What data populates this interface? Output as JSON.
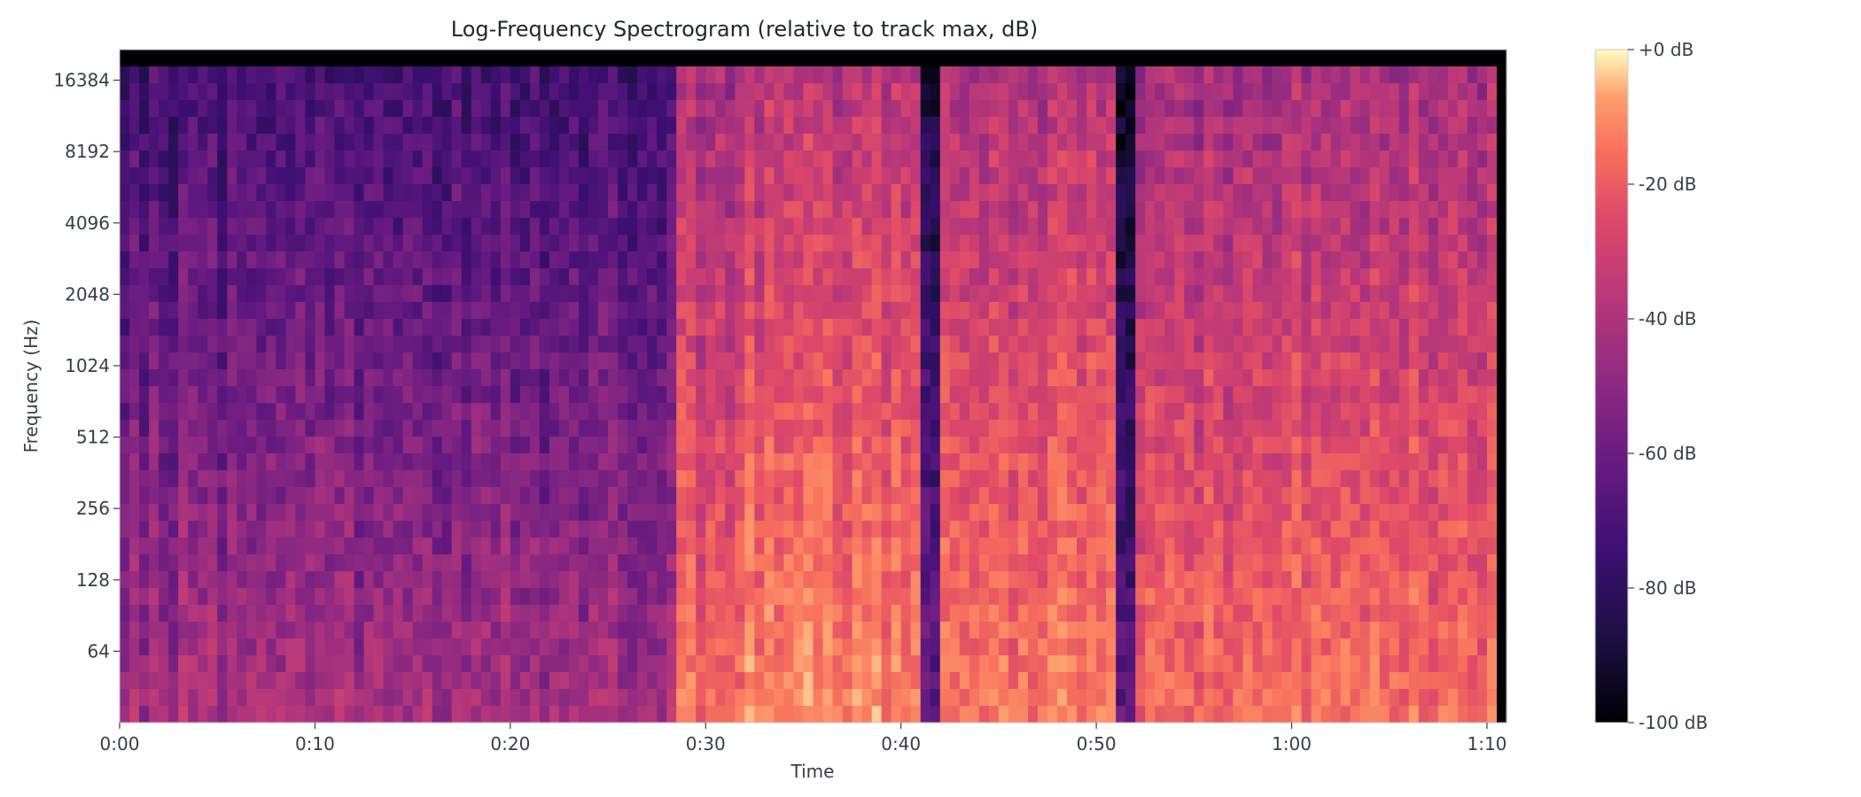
{
  "chart_data": {
    "type": "heatmap",
    "title": "Log-Frequency Spectrogram (relative to track max, dB)",
    "xlabel": "Time",
    "ylabel": "Frequency (Hz)",
    "x_unit": "seconds",
    "xlim": [
      0,
      71
    ],
    "ylim": [
      32,
      22050
    ],
    "y_scale": "log2",
    "x_ticks": [
      {
        "value": 0,
        "label": "0:00"
      },
      {
        "value": 10,
        "label": "0:10"
      },
      {
        "value": 20,
        "label": "0:20"
      },
      {
        "value": 30,
        "label": "0:30"
      },
      {
        "value": 40,
        "label": "0:40"
      },
      {
        "value": 50,
        "label": "0:50"
      },
      {
        "value": 60,
        "label": "1:00"
      },
      {
        "value": 70,
        "label": "1:10"
      }
    ],
    "y_ticks": [
      {
        "value": 64,
        "label": "64"
      },
      {
        "value": 128,
        "label": "128"
      },
      {
        "value": 256,
        "label": "256"
      },
      {
        "value": 512,
        "label": "512"
      },
      {
        "value": 1024,
        "label": "1024"
      },
      {
        "value": 2048,
        "label": "2048"
      },
      {
        "value": 4096,
        "label": "4096"
      },
      {
        "value": 8192,
        "label": "8192"
      },
      {
        "value": 16384,
        "label": "16384"
      }
    ],
    "colorbar": {
      "colormap": "magma",
      "range": [
        -100,
        0
      ],
      "ticks": [
        {
          "value": 0,
          "label": "+0 dB"
        },
        {
          "value": -20,
          "label": "-20 dB"
        },
        {
          "value": -40,
          "label": "-40 dB"
        },
        {
          "value": -60,
          "label": "-60 dB"
        },
        {
          "value": -80,
          "label": "-80 dB"
        },
        {
          "value": -100,
          "label": "-100 dB"
        }
      ]
    },
    "segments": [
      {
        "start": 0,
        "end": 28.3,
        "level_db": -62,
        "character": "sparse tonal notes, dark high frequencies"
      },
      {
        "start": 28.3,
        "end": 31.3,
        "level_db": -35,
        "character": "full-band onset"
      },
      {
        "start": 31.3,
        "end": 41.0,
        "level_db": -30,
        "character": "dense broadband, loud low end"
      },
      {
        "start": 41.0,
        "end": 42.0,
        "level_db": -75,
        "character": "brief dip"
      },
      {
        "start": 42.0,
        "end": 50.8,
        "level_db": -32,
        "character": "dense broadband"
      },
      {
        "start": 50.8,
        "end": 52.2,
        "level_db": -78,
        "character": "dip"
      },
      {
        "start": 52.2,
        "end": 70.5,
        "level_db": -35,
        "character": "dense, faint highs"
      }
    ],
    "grid": false,
    "legend": "colorbar-right"
  }
}
